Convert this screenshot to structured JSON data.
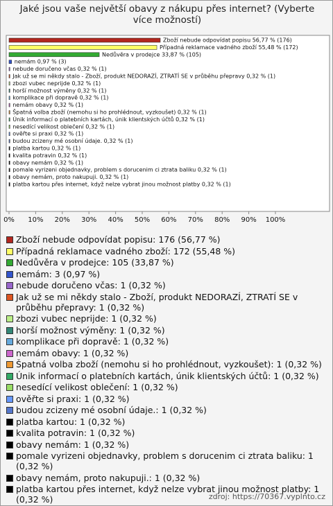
{
  "chart_data": {
    "type": "bar",
    "orientation": "horizontal",
    "title": "Jaké jsou vaše největší obavy z nákupu přes internet? (Vyberte více možností)",
    "categories": [
      "Zboží nebude odpovídat popisu",
      "Případná reklamace vadného zboží",
      "Nedůvěra v prodejce",
      "nemám",
      "nebude doručeno včas",
      "Jak už se mi někdy stalo - Zboží, produkt NEDORAZÍ, ZTRATÍ SE v průběhu přepravy",
      "zbozi vubec neprijde",
      "horší možnost výměny",
      "komplikace při dopravě",
      "nemám obavy",
      "Špatná volba zboží (nemohu si ho prohlédnout, vyzkoušet)",
      "Únik informací o platebních kartách, únik klientských účtů",
      "nesedící velikost oblečení",
      "ověřte si praxi",
      "budou zcizeny mé osobní údaje.",
      "platba kartou",
      "kvalita potravin",
      "obavy nemám",
      "pomale vyrizeni objednavky, problem s dorucenim ci ztrata baliku",
      "obavy nemám, proto nakupuji.",
      "platba kartou přes internet, když nelze vybrat jinou možnost platby"
    ],
    "values": [
      56.77,
      55.48,
      33.87,
      0.97,
      0.32,
      0.32,
      0.32,
      0.32,
      0.32,
      0.32,
      0.32,
      0.32,
      0.32,
      0.32,
      0.32,
      0.32,
      0.32,
      0.32,
      0.32,
      0.32,
      0.32
    ],
    "value_labels": [
      "Zboží nebude odpovídat popisu 56,77 % (176)",
      "Případná reklamace vadného zboží 55,48 % (172)",
      "Nedůvěra v prodejce 33,87 % (105)",
      "nemám 0,97 % (3)",
      "nebude doručeno včas 0,32 % (1)",
      "Jak už se mi někdy stalo - Zboží, produkt NEDORAZÍ, ZTRATÍ SE v průběhu přepravy 0,32 % (1)",
      "zbozi vubec neprijde 0,32 % (1)",
      "horší možnost výměny 0,32 % (1)",
      "komplikace při dopravě 0,32 % (1)",
      "nemám obavy 0,32 % (1)",
      "Špatná volba zboží (nemohu si ho prohlédnout, vyzkoušet) 0,32 % (1)",
      "Únik informací o platebních kartách, únik klientských účtů 0,32 % (1)",
      "nesedící velikost oblečení 0,32 % (1)",
      "ověřte si praxi 0,32 % (1)",
      "budou zcizeny mé osobní údaje. 0,32 % (1)",
      "platba kartou 0,32 % (1)",
      "kvalita potravin 0,32 % (1)",
      "obavy nemám 0,32 % (1)",
      "pomale vyrizeni objednavky, problem s dorucenim ci ztrata baliku 0,32 % (1)",
      "obavy nemám, proto nakupuji. 0,32 % (1)",
      "platba kartou přes internet, když nelze vybrat jinou možnost platby 0,32 % (1)"
    ],
    "legend_labels": [
      "Zboží nebude odpovídat popisu: 176 (56,77 %)",
      "Případná reklamace vadného zboží: 172 (55,48 %)",
      "Nedůvěra v prodejce: 105 (33,87 %)",
      "nemám: 3 (0,97 %)",
      "nebude doručeno včas: 1 (0,32 %)",
      "Jak už se mi někdy stalo - Zboží, produkt NEDORAZÍ, ZTRATÍ SE v průběhu přepravy: 1 (0,32 %)",
      "zbozi vubec neprijde: 1 (0,32 %)",
      "horší možnost výměny: 1 (0,32 %)",
      "komplikace při dopravě: 1 (0,32 %)",
      "nemám obavy: 1 (0,32 %)",
      "Špatná volba zboží (nemohu si ho prohlédnout, vyzkoušet): 1 (0,32 %)",
      "Únik informací o platebních kartách, únik klientských účtů: 1 (0,32 %)",
      "nesedící velikost oblečení: 1 (0,32 %)",
      "ověřte si praxi: 1 (0,32 %)",
      "budou zcizeny mé osobní údaje.: 1 (0,32 %)",
      "platba kartou: 1 (0,32 %)",
      "kvalita potravin: 1 (0,32 %)",
      "obavy nemám: 1 (0,32 %)",
      "pomale vyrizeni objednavky, problem s dorucenim ci ztrata baliku: 1 (0,32 %)",
      "obavy nemám, proto nakupuji.: 1 (0,32 %)",
      "platba kartou přes internet, když nelze vybrat jinou možnost platby: 1 (0,32 %)"
    ],
    "colors": [
      "#b3261e",
      "#ffff66",
      "#33aa33",
      "#3355cc",
      "#9966cc",
      "#dd5522",
      "#bbee88",
      "#338877",
      "#66aadd",
      "#cc66cc",
      "#ee9933",
      "#33aa66",
      "#99dd66",
      "#6699ff",
      "#5577cc",
      "#000000",
      "#000000",
      "#000000",
      "#000000",
      "#000000",
      "#000000"
    ],
    "xlim": [
      0,
      120
    ],
    "xticks": [
      {
        "value": 0,
        "label": "0%"
      },
      {
        "value": 10,
        "label": "10%"
      },
      {
        "value": 20,
        "label": "20%"
      },
      {
        "value": 30,
        "label": "30%"
      },
      {
        "value": 40,
        "label": "40%"
      },
      {
        "value": 50,
        "label": "50%"
      },
      {
        "value": 60,
        "label": "60%"
      },
      {
        "value": 70,
        "label": "70%"
      },
      {
        "value": 80,
        "label": "80%"
      },
      {
        "value": 90,
        "label": "90%"
      },
      {
        "value": 100,
        "label": "100%"
      }
    ],
    "source": "zdroj: https://70367.vyplnto.cz"
  }
}
